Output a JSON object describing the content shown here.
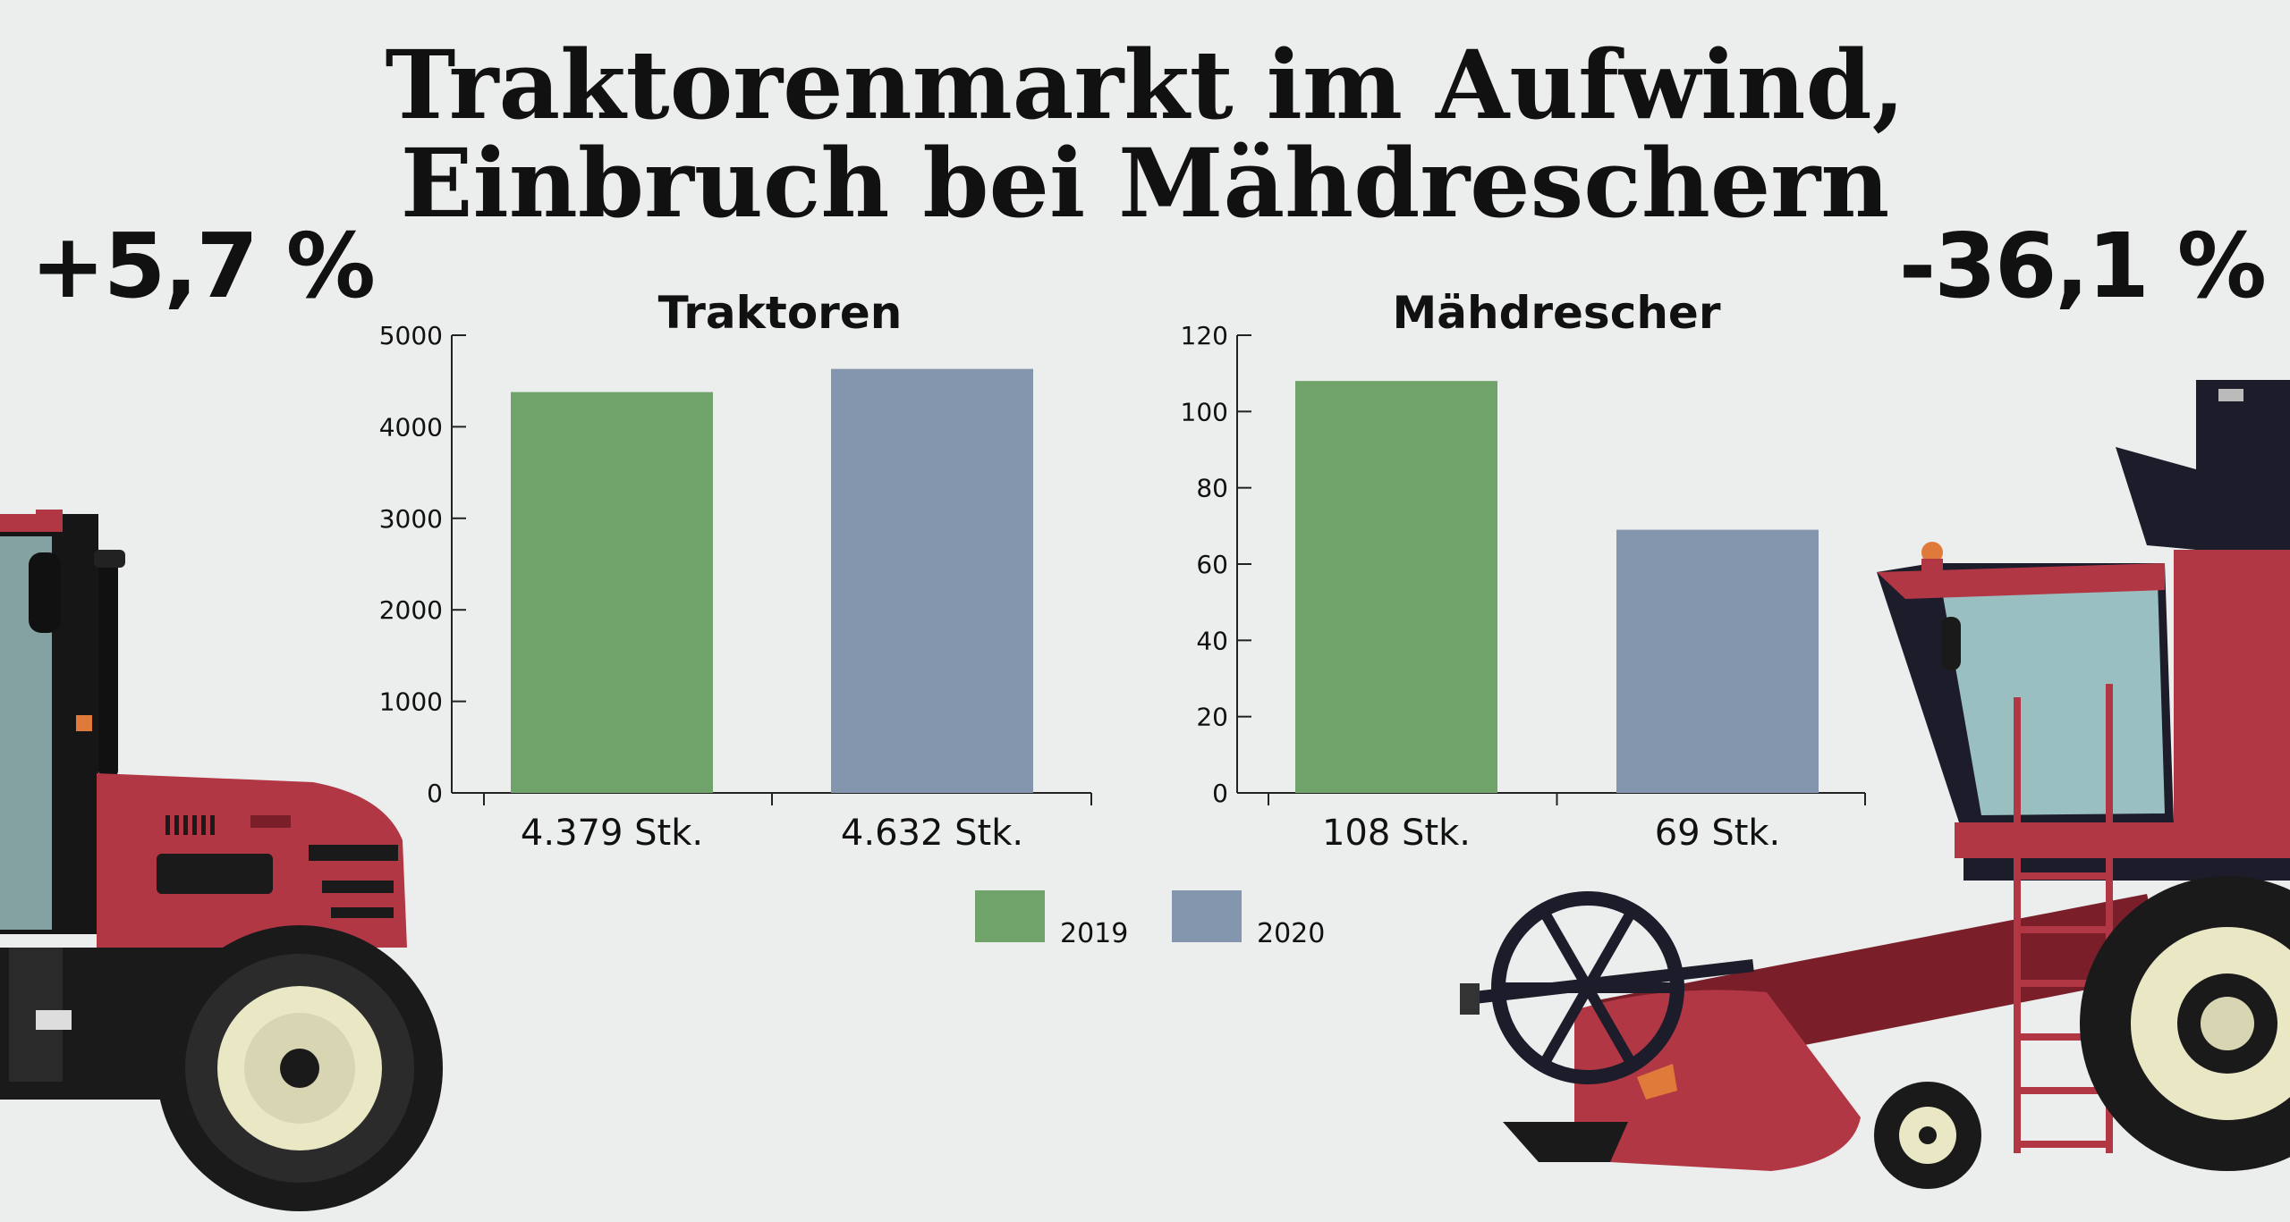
{
  "title_line1": "Traktorenmarkt im Aufwind,",
  "title_line2": "Einbruch bei Mähdreschern",
  "change_left": "+5,7 %",
  "change_right": "-36,1 %",
  "colors": {
    "y2019": "#6fa36a",
    "y2020": "#8496ae",
    "background": "#eceeed",
    "machine_red": "#b23745"
  },
  "legend": [
    {
      "label": "2019",
      "color": "#6fa36a"
    },
    {
      "label": "2020",
      "color": "#8496ae"
    }
  ],
  "chart_data": [
    {
      "type": "bar",
      "title": "Traktoren",
      "categories": [
        "4.379 Stk.",
        "4.632 Stk."
      ],
      "series": [
        {
          "values": [
            4379,
            4632
          ]
        }
      ],
      "bar_colors": [
        "#6fa36a",
        "#8496ae"
      ],
      "ylim": [
        0,
        5000
      ],
      "yticks": [
        0,
        1000,
        2000,
        3000,
        4000,
        5000
      ],
      "grid": false
    },
    {
      "type": "bar",
      "title": "Mähdrescher",
      "categories": [
        "108 Stk.",
        "69 Stk."
      ],
      "series": [
        {
          "values": [
            108,
            69
          ]
        }
      ],
      "bar_colors": [
        "#6fa36a",
        "#8496ae"
      ],
      "ylim": [
        0,
        120
      ],
      "yticks": [
        0,
        20,
        40,
        60,
        80,
        100,
        120
      ],
      "grid": false
    }
  ]
}
